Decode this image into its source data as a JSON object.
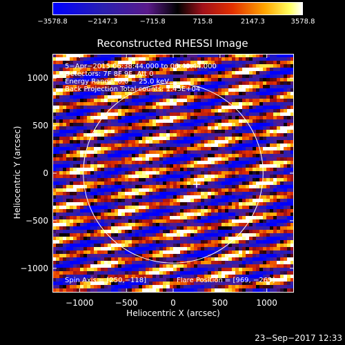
{
  "colorbar": {
    "tick_labels": [
      "−3578.8",
      "−2147.3",
      "−715.8",
      "715.8",
      "2147.3",
      "3578.8"
    ],
    "range": [
      -3578.8,
      3578.8
    ]
  },
  "chart_data": {
    "type": "heatmap",
    "title": "Reconstructed RHESSI Image",
    "xlabel": "Heliocentric X (arcsec)",
    "ylabel": "Heliocentric Y (arcsec)",
    "xlim": [
      -1290,
      1290
    ],
    "ylim": [
      -1255,
      1255
    ],
    "xticks": [
      "−1000",
      "−500",
      "0",
      "500",
      "1000"
    ],
    "xtick_values": [
      -1000,
      -500,
      0,
      500,
      1000
    ],
    "yticks": [
      "1000",
      "500",
      "0",
      "−500",
      "−1000"
    ],
    "ytick_values": [
      1000,
      500,
      0,
      -500,
      -1000
    ],
    "solar_limb_radius_arcsec": 960,
    "spin_axis_marker": [
      250,
      -118
    ],
    "flare_position": [
      969,
      -265
    ],
    "annotations": {
      "line1": "5−Apr−2015 06:38:44.000 to 06:48:44.000",
      "line2": "Detectors: 7F 8F 9F, Att 0",
      "line3": "Energy Range: 6.0 − 25.0 keV",
      "line4": "Back Projection    Total counts: 1.45E+04",
      "spin_axis": "Spin Axis = [250,−118]",
      "flare_position": "Flare Position = [969, −265]"
    }
  },
  "footer": {
    "timestamp": "23−Sep−2017 12:33"
  },
  "colors": {
    "background": "#000000",
    "foreground": "#ffffff"
  }
}
